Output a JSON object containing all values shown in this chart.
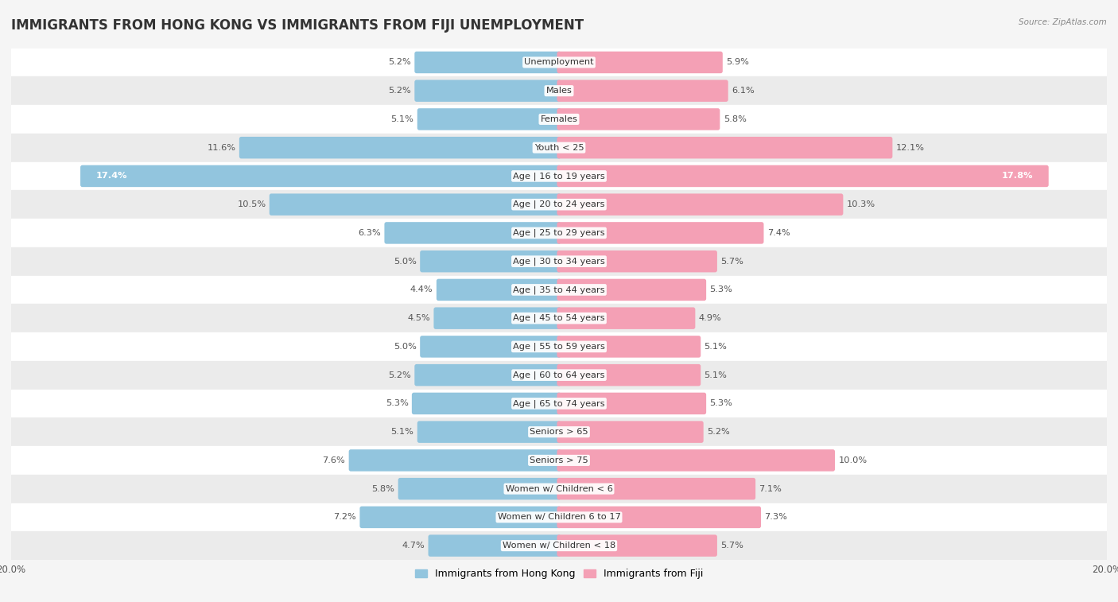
{
  "title": "IMMIGRANTS FROM HONG KONG VS IMMIGRANTS FROM FIJI UNEMPLOYMENT",
  "source": "Source: ZipAtlas.com",
  "categories": [
    "Unemployment",
    "Males",
    "Females",
    "Youth < 25",
    "Age | 16 to 19 years",
    "Age | 20 to 24 years",
    "Age | 25 to 29 years",
    "Age | 30 to 34 years",
    "Age | 35 to 44 years",
    "Age | 45 to 54 years",
    "Age | 55 to 59 years",
    "Age | 60 to 64 years",
    "Age | 65 to 74 years",
    "Seniors > 65",
    "Seniors > 75",
    "Women w/ Children < 6",
    "Women w/ Children 6 to 17",
    "Women w/ Children < 18"
  ],
  "hong_kong": [
    5.2,
    5.2,
    5.1,
    11.6,
    17.4,
    10.5,
    6.3,
    5.0,
    4.4,
    4.5,
    5.0,
    5.2,
    5.3,
    5.1,
    7.6,
    5.8,
    7.2,
    4.7
  ],
  "fiji": [
    5.9,
    6.1,
    5.8,
    12.1,
    17.8,
    10.3,
    7.4,
    5.7,
    5.3,
    4.9,
    5.1,
    5.1,
    5.3,
    5.2,
    10.0,
    7.1,
    7.3,
    5.7
  ],
  "hk_color": "#92c5de",
  "fiji_color": "#f4a0b5",
  "bg_color": "#f5f5f5",
  "row_color_light": "#ffffff",
  "row_color_dark": "#ebebeb",
  "axis_max": 20.0,
  "bar_height": 0.62,
  "title_fontsize": 12,
  "label_fontsize": 8.2,
  "tick_fontsize": 8.5,
  "legend_fontsize": 9
}
